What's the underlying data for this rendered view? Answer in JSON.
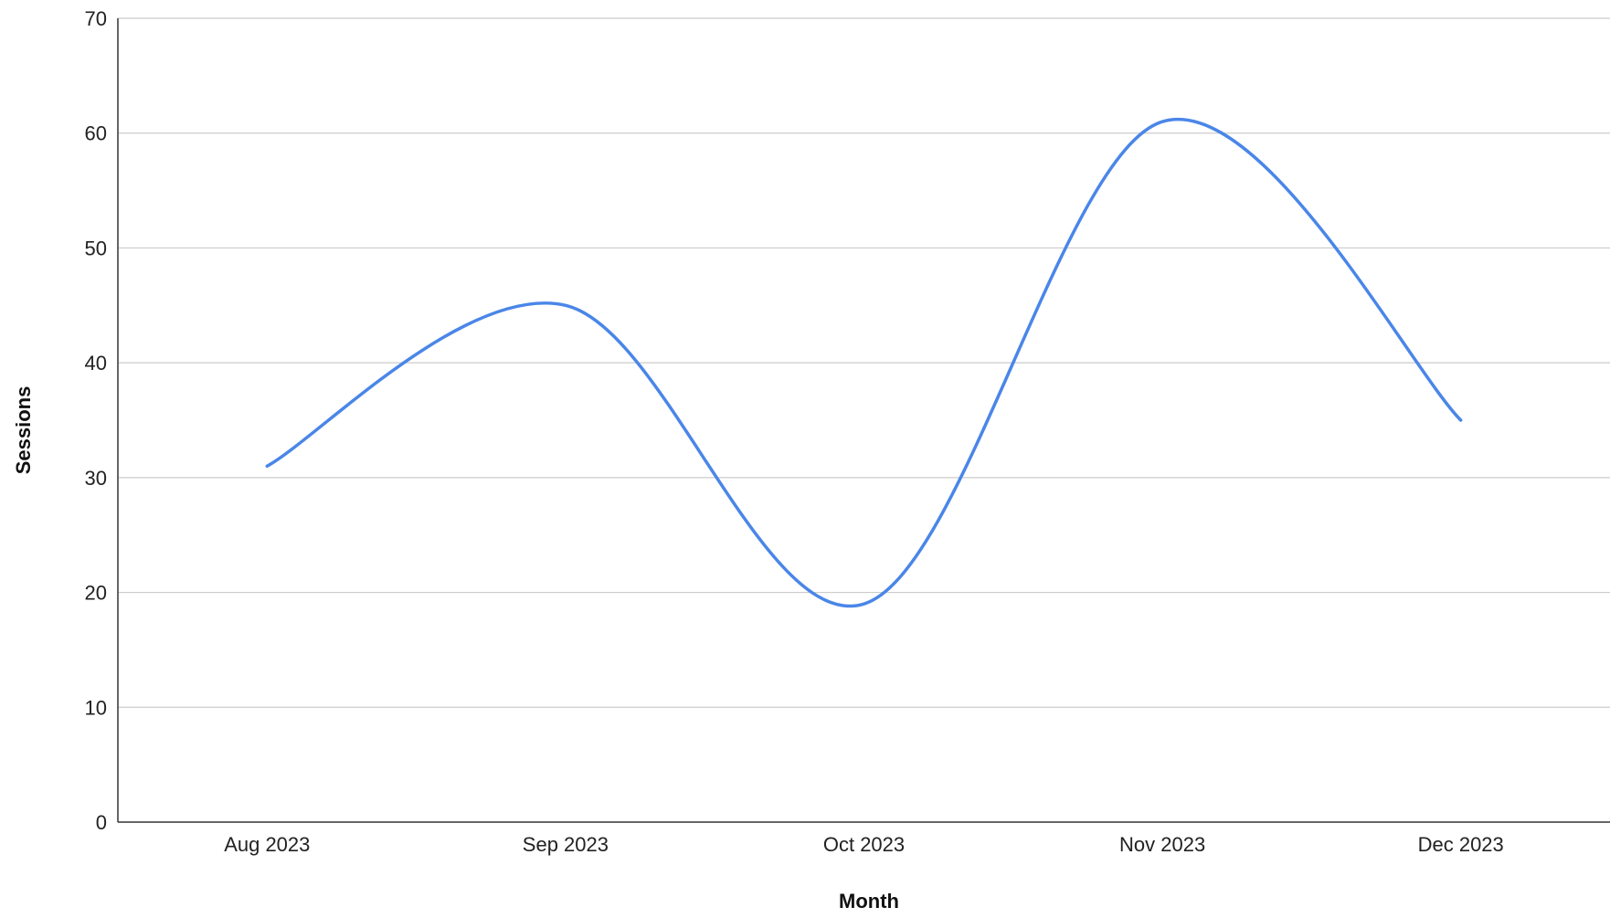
{
  "chart_data": {
    "type": "line",
    "title": "",
    "xlabel": "Month",
    "ylabel": "Sessions",
    "categories": [
      "Aug 2023",
      "Sep 2023",
      "Oct 2023",
      "Nov 2023",
      "Dec 2023"
    ],
    "series": [
      {
        "values": [
          31,
          45,
          19,
          61,
          35
        ],
        "color": "#4a86e8"
      }
    ],
    "ylim": [
      0,
      70
    ],
    "yticks": [
      0,
      10,
      20,
      30,
      40,
      50,
      60,
      70
    ],
    "curve": "smooth",
    "grid": "horizontal",
    "legend": "none"
  }
}
